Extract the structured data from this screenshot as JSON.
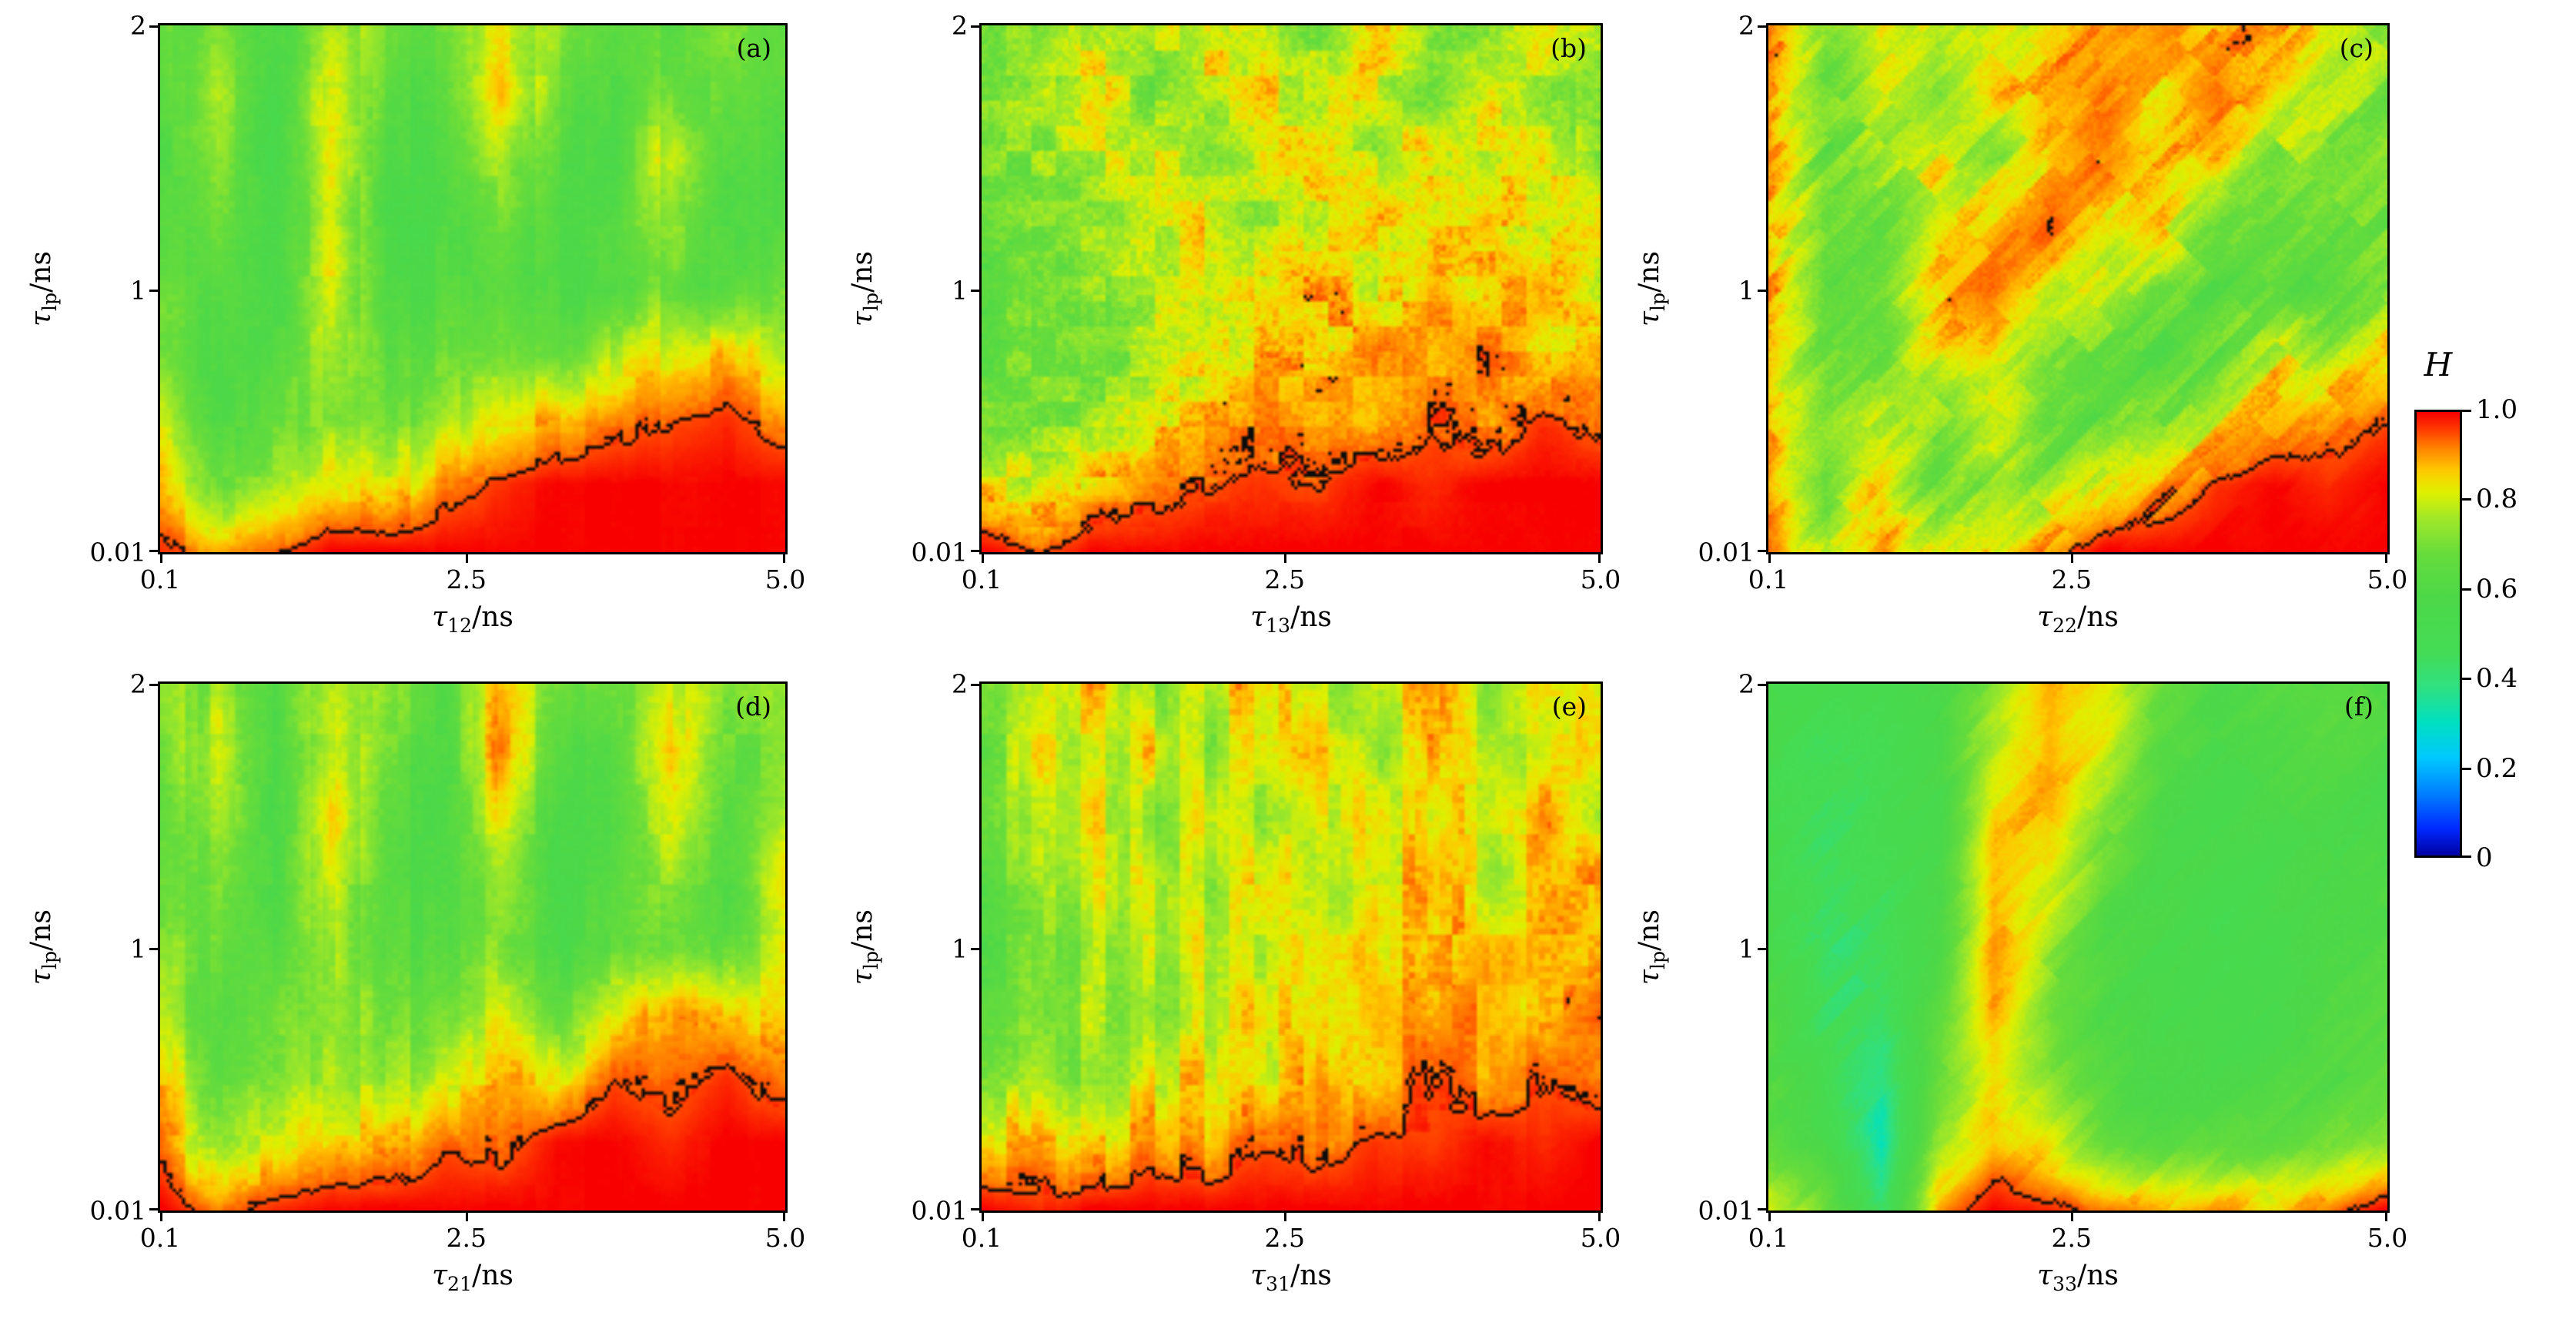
{
  "chart_data": {
    "type": "heatmap",
    "x_range": [
      0.1,
      5.0
    ],
    "y_range": [
      0.01,
      2
    ],
    "contour_level": 0.95,
    "grid_cols": 12,
    "grid_rows": 9,
    "colormap": [
      [
        0.0,
        "#0000a0"
      ],
      [
        0.06,
        "#0028ff"
      ],
      [
        0.14,
        "#0080ff"
      ],
      [
        0.22,
        "#00c8ff"
      ],
      [
        0.3,
        "#00e0c0"
      ],
      [
        0.38,
        "#30e080"
      ],
      [
        0.46,
        "#44dc54"
      ],
      [
        0.58,
        "#4cd848"
      ],
      [
        0.68,
        "#66dc3c"
      ],
      [
        0.76,
        "#a0e828"
      ],
      [
        0.82,
        "#e0f000"
      ],
      [
        0.87,
        "#ffc800"
      ],
      [
        0.92,
        "#ff8000"
      ],
      [
        0.96,
        "#ff3c00"
      ],
      [
        1.0,
        "#f80000"
      ]
    ],
    "colorbar": {
      "label": "H",
      "range": [
        0,
        1
      ],
      "ticks": [
        "1.0",
        "0.8",
        "0.6",
        "0.4",
        "0.2",
        "0"
      ]
    },
    "panels": [
      {
        "letter": "(a)",
        "xlabel_sym": "τ",
        "xlabel_sub": "12",
        "xlabel_rest": "/ns",
        "ylabel_sym": "τ",
        "ylabel_sub": "lp",
        "ylabel_rest": "/ns",
        "x_ticks": [
          "0.1",
          "2.5",
          "5.0"
        ],
        "y_ticks": [
          "2",
          "1",
          "0.01"
        ],
        "seed": 11,
        "noise": 0.08,
        "texture": "vstreak",
        "grid": [
          [
            0.65,
            0.72,
            0.6,
            0.78,
            0.66,
            0.7,
            0.85,
            0.75,
            0.62,
            0.68,
            0.72,
            0.66
          ],
          [
            0.62,
            0.8,
            0.58,
            0.85,
            0.62,
            0.65,
            0.9,
            0.68,
            0.6,
            0.72,
            0.65,
            0.7
          ],
          [
            0.6,
            0.75,
            0.55,
            0.88,
            0.58,
            0.62,
            0.8,
            0.62,
            0.58,
            0.85,
            0.6,
            0.62
          ],
          [
            0.63,
            0.7,
            0.58,
            0.82,
            0.55,
            0.6,
            0.72,
            0.6,
            0.62,
            0.78,
            0.58,
            0.65
          ],
          [
            0.68,
            0.65,
            0.6,
            0.85,
            0.58,
            0.62,
            0.68,
            0.58,
            0.6,
            0.7,
            0.62,
            0.72
          ],
          [
            0.72,
            0.6,
            0.65,
            0.8,
            0.62,
            0.68,
            0.75,
            0.65,
            0.78,
            0.85,
            0.88,
            0.8
          ],
          [
            0.8,
            0.62,
            0.7,
            0.75,
            0.68,
            0.78,
            0.85,
            0.88,
            0.92,
            0.95,
            0.97,
            0.92
          ],
          [
            0.88,
            0.7,
            0.78,
            0.85,
            0.8,
            0.92,
            0.97,
            1.0,
            1.0,
            1.0,
            1.0,
            1.0
          ],
          [
            0.97,
            0.9,
            0.95,
            1.0,
            1.0,
            1.0,
            1.0,
            1.0,
            1.0,
            1.0,
            1.0,
            1.0
          ]
        ]
      },
      {
        "letter": "(b)",
        "xlabel_sym": "τ",
        "xlabel_sub": "13",
        "xlabel_rest": "/ns",
        "ylabel_sym": "τ",
        "ylabel_sub": "lp",
        "ylabel_rest": "/ns",
        "x_ticks": [
          "0.1",
          "2.5",
          "5.0"
        ],
        "y_ticks": [
          "2",
          "1",
          "0.01"
        ],
        "seed": 23,
        "noise": 0.1,
        "texture": "blob",
        "grid": [
          [
            0.72,
            0.68,
            0.8,
            0.75,
            0.85,
            0.78,
            0.72,
            0.88,
            0.75,
            0.7,
            0.82,
            0.75
          ],
          [
            0.7,
            0.75,
            0.85,
            0.7,
            0.8,
            0.85,
            0.78,
            0.82,
            0.7,
            0.85,
            0.75,
            0.72
          ],
          [
            0.68,
            0.72,
            0.78,
            0.82,
            0.72,
            0.8,
            0.85,
            0.75,
            0.88,
            0.78,
            0.85,
            0.7
          ],
          [
            0.65,
            0.7,
            0.75,
            0.78,
            0.85,
            0.75,
            0.8,
            0.88,
            0.82,
            0.9,
            0.78,
            0.82
          ],
          [
            0.62,
            0.68,
            0.72,
            0.8,
            0.78,
            0.85,
            0.88,
            0.82,
            0.9,
            0.85,
            0.92,
            0.78
          ],
          [
            0.65,
            0.72,
            0.68,
            0.75,
            0.82,
            0.88,
            0.85,
            0.92,
            0.88,
            0.95,
            0.85,
            0.9
          ],
          [
            0.7,
            0.68,
            0.75,
            0.85,
            0.88,
            0.92,
            0.9,
            0.88,
            0.95,
            0.9,
            0.97,
            0.92
          ],
          [
            0.85,
            0.8,
            0.88,
            0.92,
            0.95,
            0.97,
            0.95,
            1.0,
            0.97,
            1.0,
            1.0,
            1.0
          ],
          [
            1.0,
            0.95,
            1.0,
            1.0,
            1.0,
            1.0,
            1.0,
            1.0,
            1.0,
            1.0,
            1.0,
            1.0
          ]
        ]
      },
      {
        "letter": "(c)",
        "xlabel_sym": "τ",
        "xlabel_sub": "22",
        "xlabel_rest": "/ns",
        "ylabel_sym": "τ",
        "ylabel_sub": "lp",
        "ylabel_rest": "/ns",
        "x_ticks": [
          "0.1",
          "2.5",
          "5.0"
        ],
        "y_ticks": [
          "2",
          "1",
          "0.01"
        ],
        "seed": 37,
        "noise": 0.1,
        "texture": "diag",
        "grid": [
          [
            0.92,
            0.7,
            0.85,
            0.75,
            0.8,
            0.85,
            0.88,
            0.92,
            0.86,
            0.9,
            0.8,
            0.75
          ],
          [
            0.88,
            0.68,
            0.78,
            0.7,
            0.85,
            0.88,
            0.92,
            0.86,
            0.92,
            0.82,
            0.75,
            0.7
          ],
          [
            0.9,
            0.66,
            0.74,
            0.8,
            0.72,
            0.88,
            0.92,
            0.85,
            0.88,
            0.75,
            0.7,
            0.72
          ],
          [
            0.85,
            0.68,
            0.7,
            0.85,
            0.88,
            0.92,
            0.85,
            0.88,
            0.72,
            0.66,
            0.72,
            0.68
          ],
          [
            0.9,
            0.66,
            0.72,
            0.88,
            0.92,
            0.85,
            0.76,
            0.66,
            0.62,
            0.68,
            0.64,
            0.75
          ],
          [
            0.86,
            0.7,
            0.68,
            0.8,
            0.88,
            0.74,
            0.64,
            0.6,
            0.68,
            0.82,
            0.78,
            0.85
          ],
          [
            0.88,
            0.72,
            0.76,
            0.72,
            0.82,
            0.66,
            0.64,
            0.72,
            0.82,
            0.9,
            0.92,
            0.95
          ],
          [
            0.9,
            0.68,
            0.84,
            0.68,
            0.74,
            0.72,
            0.82,
            0.9,
            0.97,
            1.0,
            0.97,
            1.0
          ],
          [
            0.95,
            0.74,
            0.9,
            0.8,
            0.86,
            0.92,
            1.0,
            1.0,
            1.0,
            1.0,
            1.0,
            1.0
          ]
        ]
      },
      {
        "letter": "(d)",
        "xlabel_sym": "τ",
        "xlabel_sub": "21",
        "xlabel_rest": "/ns",
        "ylabel_sym": "τ",
        "ylabel_sub": "lp",
        "ylabel_rest": "/ns",
        "x_ticks": [
          "0.1",
          "2.5",
          "5.0"
        ],
        "y_ticks": [
          "2",
          "1",
          "0.01"
        ],
        "seed": 41,
        "noise": 0.08,
        "texture": "vstreak",
        "grid": [
          [
            0.68,
            0.75,
            0.62,
            0.8,
            0.7,
            0.65,
            0.88,
            0.72,
            0.65,
            0.78,
            0.7,
            0.72
          ],
          [
            0.65,
            0.82,
            0.58,
            0.85,
            0.65,
            0.62,
            0.92,
            0.65,
            0.6,
            0.85,
            0.65,
            0.68
          ],
          [
            0.62,
            0.78,
            0.55,
            0.9,
            0.6,
            0.6,
            0.82,
            0.6,
            0.58,
            0.8,
            0.6,
            0.75
          ],
          [
            0.65,
            0.72,
            0.58,
            0.85,
            0.58,
            0.62,
            0.75,
            0.58,
            0.62,
            0.72,
            0.58,
            0.85
          ],
          [
            0.7,
            0.68,
            0.62,
            0.8,
            0.6,
            0.65,
            0.7,
            0.6,
            0.65,
            0.68,
            0.62,
            0.78
          ],
          [
            0.75,
            0.62,
            0.68,
            0.78,
            0.65,
            0.72,
            0.8,
            0.7,
            0.82,
            0.88,
            0.85,
            0.82
          ],
          [
            0.85,
            0.65,
            0.72,
            0.8,
            0.7,
            0.82,
            0.88,
            0.85,
            0.95,
            0.92,
            0.97,
            0.9
          ],
          [
            0.92,
            0.72,
            0.82,
            0.88,
            0.85,
            0.95,
            0.92,
            1.0,
            1.0,
            0.97,
            1.0,
            1.0
          ],
          [
            1.0,
            0.92,
            0.97,
            1.0,
            1.0,
            1.0,
            1.0,
            1.0,
            1.0,
            1.0,
            1.0,
            1.0
          ]
        ]
      },
      {
        "letter": "(e)",
        "xlabel_sym": "τ",
        "xlabel_sub": "31",
        "xlabel_rest": "/ns",
        "ylabel_sym": "τ",
        "ylabel_sub": "lp",
        "ylabel_rest": "/ns",
        "x_ticks": [
          "0.1",
          "2.5",
          "5.0"
        ],
        "y_ticks": [
          "2",
          "1",
          "0.01"
        ],
        "seed": 53,
        "noise": 0.1,
        "texture": "vstreak",
        "grid": [
          [
            0.7,
            0.78,
            0.85,
            0.72,
            0.8,
            0.88,
            0.75,
            0.82,
            0.9,
            0.75,
            0.85,
            0.78
          ],
          [
            0.68,
            0.82,
            0.75,
            0.85,
            0.72,
            0.82,
            0.88,
            0.75,
            0.85,
            0.8,
            0.78,
            0.85
          ],
          [
            0.72,
            0.75,
            0.82,
            0.7,
            0.85,
            0.75,
            0.8,
            0.88,
            0.78,
            0.85,
            0.9,
            0.75
          ],
          [
            0.65,
            0.72,
            0.78,
            0.82,
            0.75,
            0.85,
            0.78,
            0.82,
            0.88,
            0.8,
            0.85,
            0.88
          ],
          [
            0.62,
            0.7,
            0.72,
            0.78,
            0.82,
            0.78,
            0.85,
            0.88,
            0.82,
            0.9,
            0.88,
            0.85
          ],
          [
            0.65,
            0.68,
            0.75,
            0.72,
            0.78,
            0.85,
            0.82,
            0.9,
            0.88,
            0.92,
            0.85,
            0.92
          ],
          [
            0.72,
            0.75,
            0.7,
            0.82,
            0.85,
            0.8,
            0.9,
            0.85,
            0.95,
            0.9,
            0.95,
            0.9
          ],
          [
            0.85,
            0.88,
            0.82,
            0.92,
            0.88,
            0.95,
            0.92,
            0.97,
            0.95,
            1.0,
            0.97,
            1.0
          ],
          [
            1.0,
            0.97,
            1.0,
            1.0,
            1.0,
            1.0,
            1.0,
            1.0,
            1.0,
            1.0,
            1.0,
            1.0
          ]
        ]
      },
      {
        "letter": "(f)",
        "xlabel_sym": "τ",
        "xlabel_sub": "33",
        "xlabel_rest": "/ns",
        "ylabel_sym": "τ",
        "ylabel_sub": "lp",
        "ylabel_rest": "/ns",
        "x_ticks": [
          "0.1",
          "2.5",
          "5.0"
        ],
        "y_ticks": [
          "2",
          "1",
          "0.01"
        ],
        "seed": 67,
        "noise": 0.05,
        "texture": "diag",
        "grid": [
          [
            0.55,
            0.5,
            0.52,
            0.58,
            0.72,
            0.88,
            0.85,
            0.68,
            0.58,
            0.6,
            0.62,
            0.6
          ],
          [
            0.52,
            0.46,
            0.5,
            0.55,
            0.78,
            0.9,
            0.8,
            0.62,
            0.56,
            0.58,
            0.6,
            0.58
          ],
          [
            0.5,
            0.44,
            0.48,
            0.52,
            0.85,
            0.88,
            0.72,
            0.58,
            0.54,
            0.56,
            0.58,
            0.56
          ],
          [
            0.52,
            0.42,
            0.46,
            0.55,
            0.88,
            0.82,
            0.65,
            0.56,
            0.52,
            0.54,
            0.56,
            0.58
          ],
          [
            0.55,
            0.4,
            0.44,
            0.58,
            0.9,
            0.75,
            0.6,
            0.54,
            0.5,
            0.52,
            0.58,
            0.6
          ],
          [
            0.58,
            0.44,
            0.42,
            0.62,
            0.88,
            0.7,
            0.58,
            0.52,
            0.52,
            0.56,
            0.6,
            0.62
          ],
          [
            0.6,
            0.48,
            0.38,
            0.68,
            0.85,
            0.72,
            0.6,
            0.56,
            0.58,
            0.6,
            0.62,
            0.64
          ],
          [
            0.65,
            0.55,
            0.32,
            0.75,
            0.88,
            0.8,
            0.68,
            0.62,
            0.64,
            0.66,
            0.68,
            0.72
          ],
          [
            0.8,
            0.7,
            0.4,
            0.9,
            1.0,
            0.97,
            0.92,
            0.88,
            0.9,
            0.86,
            0.92,
            1.0
          ]
        ]
      }
    ]
  }
}
